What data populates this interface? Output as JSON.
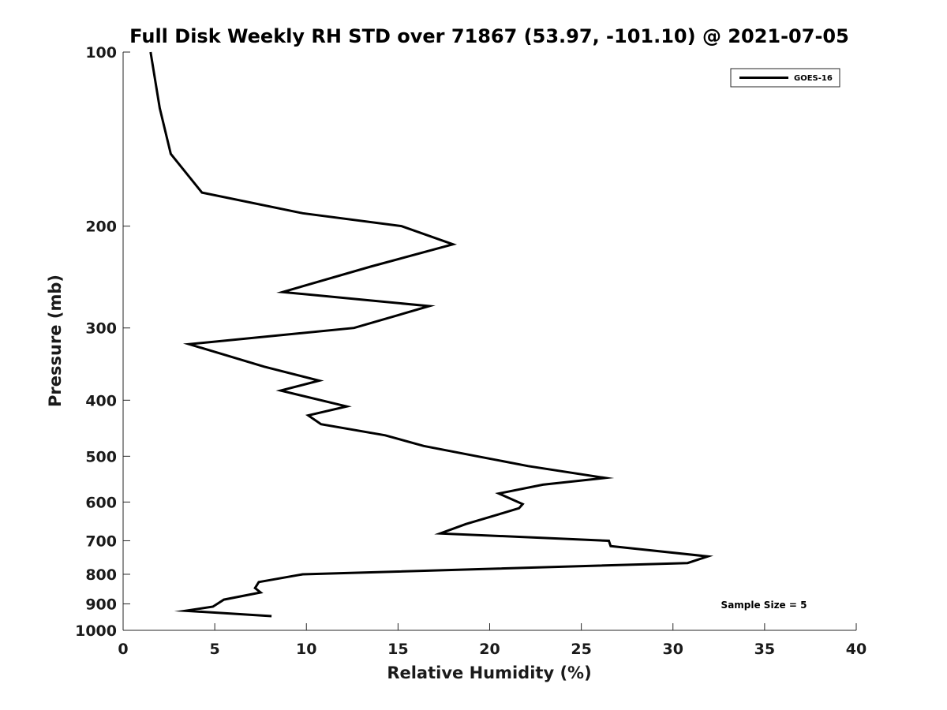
{
  "chart_data": {
    "type": "line",
    "title": "Full Disk Weekly RH STD over 71867 (53.97, -101.10) @ 2021-07-05",
    "xlabel": "Relative Humidity (%)",
    "ylabel": "Pressure (mb)",
    "xlim": [
      0,
      40
    ],
    "ylim": [
      100,
      1000
    ],
    "y_scale": "log",
    "y_inverted": true,
    "x_ticks": [
      0,
      5,
      10,
      15,
      20,
      25,
      30,
      35,
      40
    ],
    "x_tick_labels": [
      "0",
      "5",
      "10",
      "15",
      "20",
      "25",
      "30",
      "35",
      "40"
    ],
    "y_ticks": [
      100,
      200,
      300,
      400,
      500,
      600,
      700,
      800,
      900,
      1000
    ],
    "y_tick_labels": [
      "100",
      "200",
      "300",
      "400",
      "500",
      "600",
      "700",
      "800",
      "900",
      "1000"
    ],
    "grid": false,
    "legend_position": "top-right",
    "annotation": "Sample Size = 5",
    "series": [
      {
        "name": "GOES-16",
        "color": "#000000",
        "points": [
          [
            1.5,
            100
          ],
          [
            2.0,
            125
          ],
          [
            2.6,
            150
          ],
          [
            4.3,
            175
          ],
          [
            9.8,
            190
          ],
          [
            15.2,
            200
          ],
          [
            18.0,
            215
          ],
          [
            13.5,
            235
          ],
          [
            8.7,
            260
          ],
          [
            16.7,
            275
          ],
          [
            12.6,
            300
          ],
          [
            3.6,
            320
          ],
          [
            7.7,
            350
          ],
          [
            10.7,
            370
          ],
          [
            8.6,
            385
          ],
          [
            12.2,
            410
          ],
          [
            10.1,
            425
          ],
          [
            10.8,
            440
          ],
          [
            14.3,
            460
          ],
          [
            16.4,
            480
          ],
          [
            19.3,
            500
          ],
          [
            22.1,
            520
          ],
          [
            26.3,
            545
          ],
          [
            22.9,
            560
          ],
          [
            20.5,
            580
          ],
          [
            21.8,
            605
          ],
          [
            21.6,
            615
          ],
          [
            20.5,
            630
          ],
          [
            18.7,
            655
          ],
          [
            17.3,
            680
          ],
          [
            26.5,
            700
          ],
          [
            26.6,
            715
          ],
          [
            31.9,
            745
          ],
          [
            30.8,
            765
          ],
          [
            9.8,
            800
          ],
          [
            7.4,
            825
          ],
          [
            7.2,
            845
          ],
          [
            7.5,
            860
          ],
          [
            5.5,
            885
          ],
          [
            4.9,
            910
          ],
          [
            3.4,
            925
          ],
          [
            8.1,
            945
          ]
        ]
      }
    ]
  }
}
